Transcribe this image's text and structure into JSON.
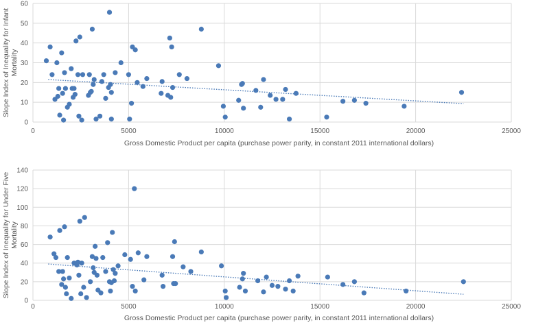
{
  "chart_data": [
    {
      "type": "scatter",
      "xlabel": "Gross Domestic Product per capita (purchase power parity, in constant 2011 international dollars)",
      "ylabel": [
        "Slope Index of Inequality for Infant",
        "Mortality"
      ],
      "xlim": [
        0,
        25000
      ],
      "ylim": [
        0,
        60
      ],
      "xticks": [
        0,
        5000,
        10000,
        15000,
        20000,
        25000
      ],
      "yticks": [
        0,
        10,
        20,
        30,
        40,
        50,
        60
      ],
      "grid": true,
      "trendline": {
        "style": "dotted linear",
        "x": [
          800,
          22500
        ],
        "y": [
          21.5,
          9.3
        ]
      },
      "marker_color": "#4a7ab7",
      "points": [
        [
          700,
          31
        ],
        [
          900,
          38
        ],
        [
          1000,
          24
        ],
        [
          1150,
          11.5
        ],
        [
          1250,
          30
        ],
        [
          1300,
          13
        ],
        [
          1350,
          17
        ],
        [
          1400,
          3.5
        ],
        [
          1500,
          35
        ],
        [
          1550,
          14.5
        ],
        [
          1600,
          1
        ],
        [
          1650,
          25
        ],
        [
          1700,
          17
        ],
        [
          1800,
          7.5
        ],
        [
          1900,
          9
        ],
        [
          2000,
          27
        ],
        [
          2050,
          17
        ],
        [
          2100,
          12.5
        ],
        [
          2150,
          17
        ],
        [
          2200,
          14
        ],
        [
          2250,
          41
        ],
        [
          2350,
          24
        ],
        [
          2400,
          3
        ],
        [
          2450,
          43
        ],
        [
          2550,
          1
        ],
        [
          2600,
          24
        ],
        [
          2900,
          13.5
        ],
        [
          2950,
          24
        ],
        [
          3000,
          15
        ],
        [
          3050,
          15.5
        ],
        [
          3100,
          47
        ],
        [
          3150,
          19
        ],
        [
          3200,
          21.5
        ],
        [
          3300,
          1.5
        ],
        [
          3500,
          3
        ],
        [
          3600,
          20.5
        ],
        [
          3700,
          24
        ],
        [
          3800,
          12
        ],
        [
          3950,
          17.5
        ],
        [
          4000,
          55.5
        ],
        [
          4050,
          19
        ],
        [
          4100,
          15
        ],
        [
          4100,
          1.5
        ],
        [
          4300,
          25
        ],
        [
          4600,
          30
        ],
        [
          5000,
          24
        ],
        [
          5050,
          1.5
        ],
        [
          5150,
          9.5
        ],
        [
          5200,
          38
        ],
        [
          5350,
          36.5
        ],
        [
          5450,
          20
        ],
        [
          5750,
          18
        ],
        [
          5950,
          22
        ],
        [
          6700,
          14.5
        ],
        [
          6750,
          20.5
        ],
        [
          7050,
          13.5
        ],
        [
          7150,
          42.5
        ],
        [
          7200,
          12.5
        ],
        [
          7250,
          38
        ],
        [
          7300,
          17.5
        ],
        [
          7650,
          24
        ],
        [
          8050,
          22
        ],
        [
          8800,
          47
        ],
        [
          9700,
          28.5
        ],
        [
          9950,
          8
        ],
        [
          10050,
          2.5
        ],
        [
          10750,
          11
        ],
        [
          10900,
          19
        ],
        [
          10950,
          19.5
        ],
        [
          11000,
          7
        ],
        [
          11650,
          16
        ],
        [
          11900,
          7.5
        ],
        [
          12050,
          21.5
        ],
        [
          12400,
          13.5
        ],
        [
          12700,
          11.5
        ],
        [
          13050,
          11.5
        ],
        [
          13200,
          16.5
        ],
        [
          13400,
          1.5
        ],
        [
          13750,
          14.5
        ],
        [
          15350,
          2.5
        ],
        [
          16200,
          10.5
        ],
        [
          16800,
          11
        ],
        [
          17400,
          9.5
        ],
        [
          19400,
          8
        ],
        [
          22400,
          15
        ]
      ]
    },
    {
      "type": "scatter",
      "xlabel": "Gross Domestic Product per capita (purchase power parity, in constant 2011 international dollars)",
      "ylabel": [
        "Slope Index of Inequality for Under Five",
        "Mortality"
      ],
      "xlim": [
        0,
        25000
      ],
      "ylim": [
        0,
        140
      ],
      "xticks": [
        0,
        5000,
        10000,
        15000,
        20000,
        25000
      ],
      "yticks": [
        0,
        20,
        40,
        60,
        80,
        100,
        120,
        140
      ],
      "grid": true,
      "trendline": {
        "style": "dotted linear",
        "x": [
          800,
          22500
        ],
        "y": [
          39,
          6.5
        ]
      },
      "marker_color": "#4a7ab7",
      "points": [
        [
          900,
          68
        ],
        [
          1100,
          50
        ],
        [
          1200,
          46
        ],
        [
          1350,
          31
        ],
        [
          1400,
          75
        ],
        [
          1500,
          17
        ],
        [
          1550,
          31
        ],
        [
          1600,
          23
        ],
        [
          1650,
          79
        ],
        [
          1700,
          14
        ],
        [
          1750,
          7
        ],
        [
          1800,
          46
        ],
        [
          1900,
          24
        ],
        [
          2000,
          2
        ],
        [
          2150,
          40
        ],
        [
          2300,
          38
        ],
        [
          2350,
          41
        ],
        [
          2400,
          27
        ],
        [
          2450,
          85
        ],
        [
          2500,
          7
        ],
        [
          2550,
          40
        ],
        [
          2650,
          14
        ],
        [
          2700,
          89
        ],
        [
          2800,
          3
        ],
        [
          3000,
          20
        ],
        [
          3100,
          47
        ],
        [
          3150,
          35
        ],
        [
          3200,
          30
        ],
        [
          3250,
          58
        ],
        [
          3300,
          45
        ],
        [
          3350,
          27
        ],
        [
          3400,
          11
        ],
        [
          3550,
          8
        ],
        [
          3650,
          46
        ],
        [
          3800,
          31
        ],
        [
          3900,
          62
        ],
        [
          4000,
          20
        ],
        [
          4050,
          10
        ],
        [
          4100,
          19
        ],
        [
          4150,
          73
        ],
        [
          4200,
          33
        ],
        [
          4250,
          21
        ],
        [
          4300,
          29
        ],
        [
          4450,
          37
        ],
        [
          4800,
          49
        ],
        [
          5100,
          44
        ],
        [
          5200,
          15
        ],
        [
          5300,
          120
        ],
        [
          5350,
          10
        ],
        [
          5500,
          51
        ],
        [
          5800,
          22
        ],
        [
          5950,
          47
        ],
        [
          6750,
          27
        ],
        [
          6800,
          15
        ],
        [
          7300,
          47
        ],
        [
          7350,
          18
        ],
        [
          7400,
          63
        ],
        [
          7450,
          18
        ],
        [
          7850,
          36
        ],
        [
          8250,
          31
        ],
        [
          8800,
          52
        ],
        [
          9850,
          37
        ],
        [
          10050,
          10
        ],
        [
          10100,
          3
        ],
        [
          10800,
          14
        ],
        [
          10950,
          23
        ],
        [
          11000,
          29
        ],
        [
          11100,
          10
        ],
        [
          11750,
          21
        ],
        [
          12050,
          9
        ],
        [
          12200,
          25
        ],
        [
          12500,
          16
        ],
        [
          12800,
          15
        ],
        [
          13200,
          12
        ],
        [
          13400,
          21
        ],
        [
          13600,
          10
        ],
        [
          13850,
          26
        ],
        [
          15400,
          25
        ],
        [
          16200,
          17
        ],
        [
          16800,
          20
        ],
        [
          17300,
          8
        ],
        [
          19500,
          10
        ],
        [
          22500,
          20
        ]
      ]
    }
  ]
}
